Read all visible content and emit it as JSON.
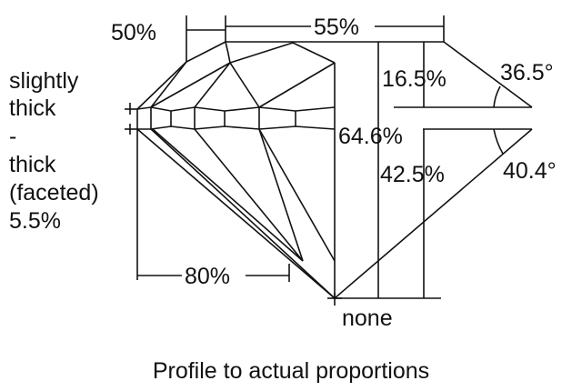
{
  "labels": {
    "crown_diameter": "50%",
    "table": "55%",
    "crown_height": "16.5%",
    "crown_angle": "36.5°",
    "total_depth": "64.6%",
    "pavilion_depth": "42.5%",
    "pavilion_angle": "40.4°",
    "lower_half": "80%",
    "culet": "none",
    "girdle": [
      "slightly",
      "thick",
      "-",
      "thick",
      "(faceted)",
      "5.5%"
    ]
  },
  "caption": "Profile to actual proportions"
}
